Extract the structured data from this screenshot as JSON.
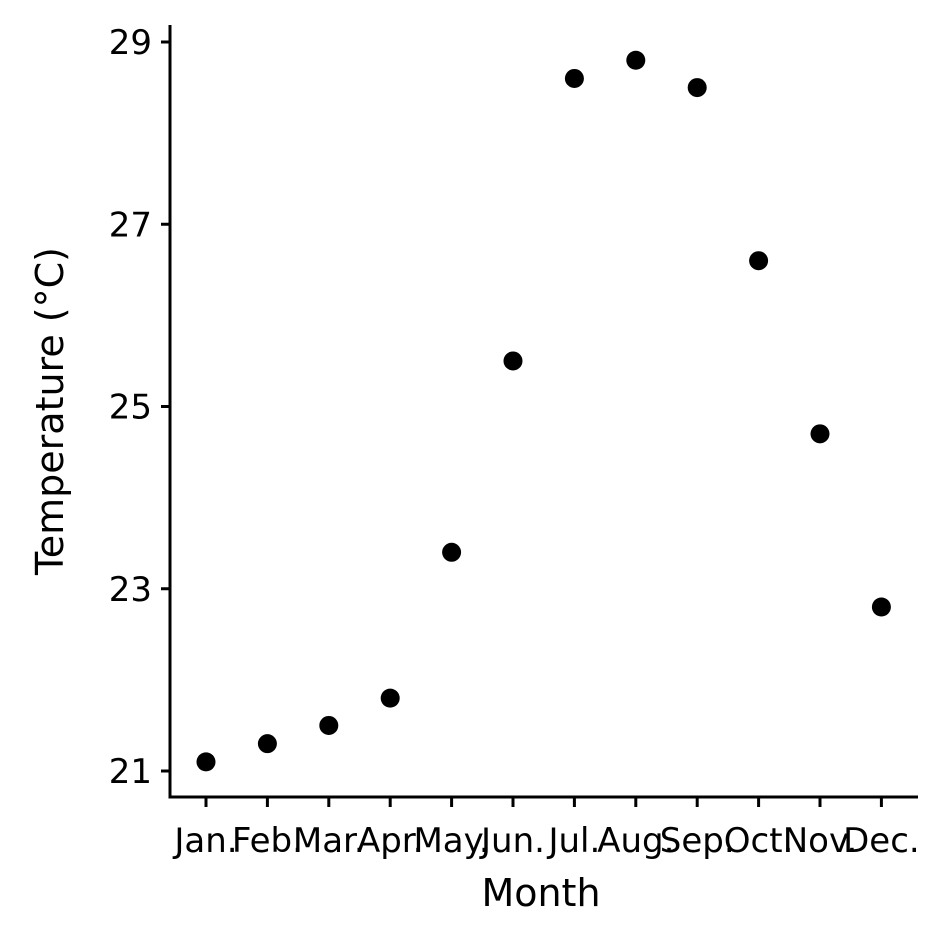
{
  "chart_data": {
    "type": "scatter",
    "title": "",
    "xlabel": "Month",
    "ylabel": "Temperature (°C)",
    "categories": [
      "Jan.",
      "Feb.",
      "Mar.",
      "Apr.",
      "May.",
      "Jun.",
      "Jul.",
      "Aug.",
      "Sep.",
      "Oct.",
      "Nov.",
      "Dec."
    ],
    "values": [
      21.1,
      21.3,
      21.5,
      21.8,
      23.4,
      25.5,
      28.6,
      28.8,
      28.5,
      26.6,
      24.7,
      22.8
    ],
    "yticks": [
      21,
      23,
      25,
      27,
      29
    ],
    "ylim": [
      20.9,
      29.2
    ],
    "grid": false,
    "point_color": "#000000"
  }
}
